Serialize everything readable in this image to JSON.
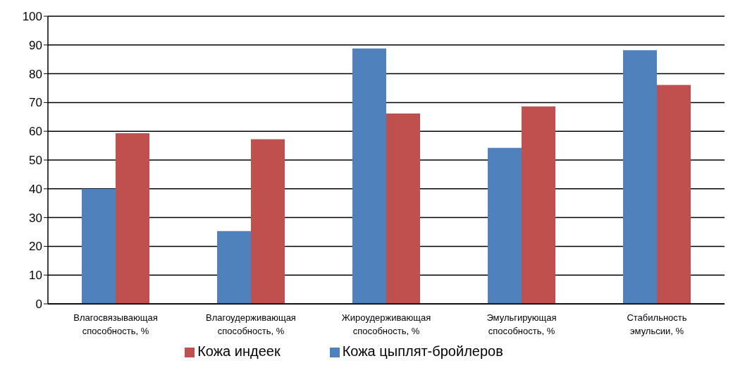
{
  "chart_data": {
    "type": "bar",
    "categories": [
      "Влагосвязывающая способность, %",
      "Влагоудерживающая способность, %",
      "Жироудерживающая способность, %",
      "Эмульгирующая способность, %",
      "Стабильность эмульсии, %"
    ],
    "series": [
      {
        "name": "Кожа цыплят-бройлеров",
        "color": "#4f81bd",
        "values": [
          40,
          25.3,
          88.8,
          54.2,
          88.2
        ]
      },
      {
        "name": "Кожа индеек",
        "color": "#c0504d",
        "values": [
          59.3,
          57.2,
          66.2,
          68.6,
          76.1
        ]
      }
    ],
    "ylim": [
      0,
      100
    ],
    "yticks": [
      0,
      10,
      20,
      30,
      40,
      50,
      60,
      70,
      80,
      90,
      100
    ],
    "grid": "y",
    "legend": "bottom"
  }
}
